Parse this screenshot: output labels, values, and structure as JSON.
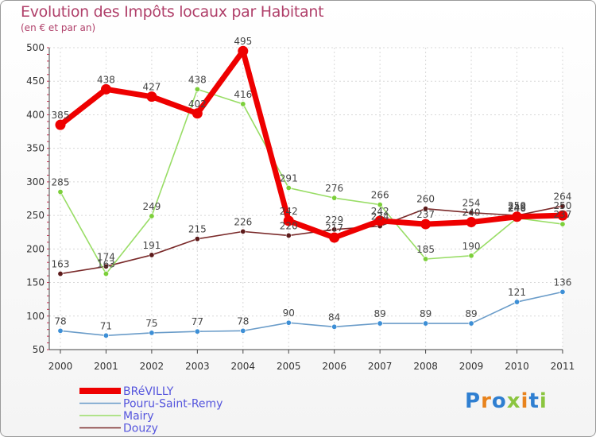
{
  "header": {
    "title": "Evolution des Impôts locaux par Habitant",
    "subtitle": "(en € et par an)"
  },
  "brand": {
    "letters": [
      "P",
      "r",
      "o",
      "x",
      "i",
      "t",
      "i"
    ],
    "colors": [
      "#2f7fd1",
      "#e8831d",
      "#2f7fd1",
      "#8bc53f",
      "#e8831d",
      "#2f7fd1",
      "#8bc53f"
    ]
  },
  "chart_data": {
    "type": "line",
    "title": "Evolution des Impôts locaux par Habitant",
    "subtitle": "(en € et par an)",
    "xlabel": "",
    "ylabel": "",
    "categories": [
      "2000",
      "2001",
      "2002",
      "2003",
      "2004",
      "2005",
      "2006",
      "2007",
      "2008",
      "2009",
      "2010",
      "2011"
    ],
    "ylim": [
      50,
      500
    ],
    "yticks": [
      50,
      100,
      150,
      200,
      250,
      300,
      350,
      400,
      450,
      500
    ],
    "grid": true,
    "legend_position": "bottom-left",
    "series": [
      {
        "name": "Douzy",
        "color": "#7a2a2a",
        "markerColor": "#5c1a1a",
        "values": [
          163,
          174,
          191,
          215,
          226,
          220,
          229,
          234,
          260,
          254,
          250,
          264
        ]
      },
      {
        "name": "Mairy",
        "color": "#99dd66",
        "markerColor": "#7ccf3a",
        "values": [
          285,
          163,
          249,
          438,
          416,
          291,
          276,
          266,
          185,
          190,
          246,
          237
        ]
      },
      {
        "name": "Pouru-Saint-Remy",
        "color": "#6a9cc9",
        "markerColor": "#3d8fd6",
        "values": [
          78,
          71,
          75,
          77,
          78,
          90,
          84,
          89,
          89,
          89,
          121,
          136
        ]
      },
      {
        "name": "BRéVILLY",
        "color": "#ee0000",
        "markerColor": "#ee0000",
        "values": [
          385,
          438,
          427,
          402,
          495,
          242,
          217,
          242,
          237,
          240,
          248,
          250
        ]
      }
    ],
    "data_labels": [
      {
        "series": "BRéVILLY",
        "values": [
          "385",
          "438",
          "427",
          "402",
          "495",
          "242",
          "217",
          "242",
          "237",
          "240",
          "248",
          "250"
        ]
      },
      {
        "series": "Mairy",
        "values": [
          "285",
          "163",
          "249",
          "438",
          "416",
          "291",
          "276",
          "266",
          "185",
          "190",
          "246",
          "237"
        ]
      },
      {
        "series": "Douzy",
        "values": [
          "163",
          "174",
          "191",
          "215",
          "226",
          "220",
          "229",
          "234",
          "260",
          "254",
          "250",
          "264"
        ]
      },
      {
        "series": "Pouru-Saint-Remy",
        "values": [
          "78",
          "71",
          "75",
          "77",
          "78",
          "90",
          "84",
          "89",
          "89",
          "89",
          "121",
          "136"
        ]
      }
    ],
    "legend": [
      "BRéVILLY",
      "Pouru-Saint-Remy",
      "Mairy",
      "Douzy"
    ]
  }
}
